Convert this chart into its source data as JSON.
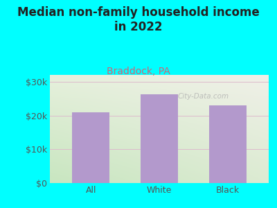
{
  "title": "Median non-family household income\nin 2022",
  "subtitle": "Braddock, PA",
  "categories": [
    "All",
    "White",
    "Black"
  ],
  "values": [
    21000,
    26200,
    23000
  ],
  "bar_color": "#b399cc",
  "bg_outer": "#00ffff",
  "bg_plot_top_left": "#c8e6c0",
  "bg_plot_bottom_right": "#f0f0e8",
  "ylim": [
    0,
    32000
  ],
  "yticks": [
    0,
    10000,
    20000,
    30000
  ],
  "ytick_labels": [
    "$0",
    "$10k",
    "$20k",
    "$30k"
  ],
  "title_fontsize": 12,
  "subtitle_fontsize": 10,
  "subtitle_color": "#cc6677",
  "title_color": "#222222",
  "tick_color": "#555555",
  "grid_color": "#ddbbcc",
  "watermark": "City-Data.com"
}
